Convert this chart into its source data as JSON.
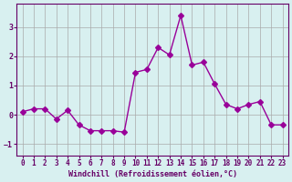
{
  "x": [
    0,
    1,
    2,
    3,
    4,
    5,
    6,
    7,
    8,
    9,
    10,
    11,
    12,
    13,
    14,
    15,
    16,
    17,
    18,
    19,
    20,
    21,
    22,
    23
  ],
  "y": [
    0.1,
    0.2,
    0.2,
    -0.15,
    0.15,
    -0.35,
    -0.55,
    -0.55,
    -0.55,
    -0.6,
    1.45,
    1.55,
    2.3,
    2.05,
    3.4,
    1.7,
    1.8,
    1.05,
    0.35,
    0.2,
    0.35,
    0.45,
    -0.35,
    -0.35
  ],
  "xlabel": "Windchill (Refroidissement éolien,°C)",
  "xlim": [
    -0.5,
    23.5
  ],
  "ylim": [
    -1.4,
    3.8
  ],
  "yticks": [
    -1,
    0,
    1,
    2,
    3
  ],
  "xticks": [
    0,
    1,
    2,
    3,
    4,
    5,
    6,
    7,
    8,
    9,
    10,
    11,
    12,
    13,
    14,
    15,
    16,
    17,
    18,
    19,
    20,
    21,
    22,
    23
  ],
  "line_color": "#990099",
  "marker": "D",
  "marker_size": 3,
  "bg_color": "#d8f0f0",
  "grid_color": "#aaaaaa",
  "label_color": "#660066",
  "tick_color": "#660066"
}
